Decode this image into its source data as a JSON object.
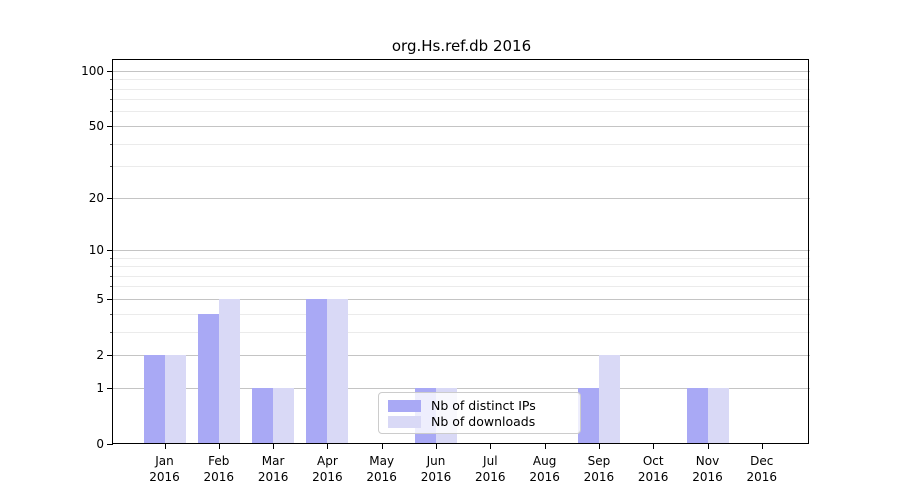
{
  "chart_data": {
    "type": "bar",
    "title": "org.Hs.ref.db 2016",
    "y_scale": "log10(1+x)",
    "ylim": [
      0,
      114
    ],
    "grid": true,
    "legend_position": "lower-center-inside",
    "y_ticks": [
      0,
      1,
      2,
      5,
      10,
      20,
      50,
      100
    ],
    "y_minor_ticks": [
      3,
      4,
      6,
      7,
      8,
      9,
      30,
      40,
      60,
      70,
      80,
      90
    ],
    "months": [
      {
        "label": "Jan",
        "year": "2016"
      },
      {
        "label": "Feb",
        "year": "2016"
      },
      {
        "label": "Mar",
        "year": "2016"
      },
      {
        "label": "Apr",
        "year": "2016"
      },
      {
        "label": "May",
        "year": "2016"
      },
      {
        "label": "Jun",
        "year": "2016"
      },
      {
        "label": "Jul",
        "year": "2016"
      },
      {
        "label": "Aug",
        "year": "2016"
      },
      {
        "label": "Sep",
        "year": "2016"
      },
      {
        "label": "Oct",
        "year": "2016"
      },
      {
        "label": "Nov",
        "year": "2016"
      },
      {
        "label": "Dec",
        "year": "2016"
      }
    ],
    "series": [
      {
        "name": "Nb of distinct IPs",
        "color": "#a9a9f5",
        "values": [
          2,
          4,
          1,
          5,
          0,
          1,
          0,
          0,
          1,
          0,
          1,
          0
        ]
      },
      {
        "name": "Nb of downloads",
        "color": "#d9d9f6",
        "values": [
          2,
          5,
          1,
          5,
          0,
          1,
          0,
          0,
          2,
          0,
          1,
          0
        ]
      }
    ]
  }
}
